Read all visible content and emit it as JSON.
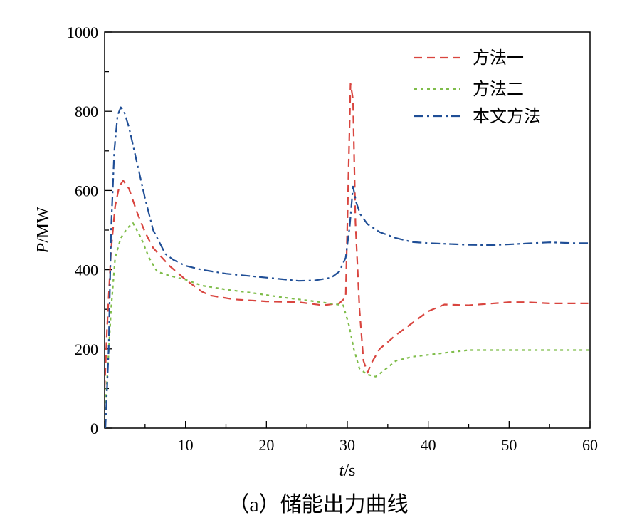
{
  "chart_data": {
    "type": "line",
    "caption": "（a）储能出力曲线",
    "xlabel": {
      "italic": "t",
      "unit": "/s"
    },
    "ylabel": {
      "italic": "P",
      "unit": "/MW"
    },
    "xlim": [
      0,
      60
    ],
    "ylim": [
      0,
      1000
    ],
    "xticks": [
      10,
      20,
      30,
      40,
      50,
      60
    ],
    "xtick_labels": [
      "10",
      "20",
      "30",
      "40",
      "50",
      "60"
    ],
    "yticks": [
      0,
      200,
      400,
      600,
      800,
      1000
    ],
    "ytick_labels": [
      "0",
      "200",
      "400",
      "600",
      "800",
      "1000"
    ],
    "grid": false,
    "legend_position": "top-right",
    "series": [
      {
        "name": "方法一",
        "color": "#d9453f",
        "dash": "dashed",
        "x": [
          0,
          0.3,
          0.8,
          1.3,
          1.8,
          2.3,
          3.0,
          4.0,
          5.0,
          6.0,
          8.0,
          10.0,
          12.0,
          13.0,
          16.0,
          20.0,
          24.0,
          27.0,
          29.0,
          29.8,
          30.1,
          30.4,
          30.7,
          31.0,
          31.5,
          32.0,
          32.5,
          33.0,
          34.0,
          36.0,
          38.0,
          40.0,
          42.0,
          45.0,
          50.0,
          52.0,
          55.0,
          60.0
        ],
        "y": [
          100,
          250,
          450,
          560,
          610,
          625,
          605,
          545,
          495,
          455,
          410,
          375,
          345,
          335,
          325,
          320,
          318,
          310,
          315,
          330,
          600,
          870,
          830,
          520,
          300,
          170,
          140,
          165,
          200,
          235,
          265,
          295,
          312,
          310,
          318,
          318,
          315,
          315
        ]
      },
      {
        "name": "方法二",
        "color": "#7fbd4a",
        "dash": "dotted",
        "x": [
          0,
          0.3,
          0.8,
          1.3,
          2.0,
          2.8,
          3.5,
          4.5,
          5.5,
          6.5,
          8.0,
          10.0,
          12.0,
          15.0,
          18.0,
          22.0,
          26.0,
          29.5,
          30.2,
          30.8,
          31.5,
          32.5,
          33.5,
          34.5,
          36.0,
          38.0,
          42.0,
          45.0,
          50.0,
          55.0,
          60.0
        ],
        "y": [
          30,
          120,
          300,
          430,
          480,
          505,
          518,
          480,
          430,
          395,
          385,
          375,
          360,
          350,
          342,
          330,
          320,
          310,
          260,
          200,
          150,
          135,
          130,
          145,
          170,
          180,
          190,
          197,
          197,
          197,
          197
        ]
      },
      {
        "name": "本文方法",
        "color": "#1f4e96",
        "dash": "dashdot",
        "x": [
          0.1,
          0.5,
          0.8,
          1.2,
          1.6,
          2.0,
          2.4,
          3.0,
          4.0,
          5.0,
          6.0,
          7.0,
          7.5,
          8.5,
          10.0,
          12.0,
          15.0,
          20.0,
          24.0,
          26.0,
          28.0,
          29.0,
          29.8,
          30.3,
          30.7,
          31.1,
          31.6,
          32.5,
          34.0,
          36.0,
          38.0,
          40.0,
          45.0,
          48.0,
          52.0,
          55.0,
          58.0,
          60.0
        ],
        "y": [
          0,
          200,
          500,
          700,
          790,
          810,
          800,
          760,
          670,
          580,
          500,
          460,
          440,
          425,
          410,
          400,
          390,
          380,
          372,
          373,
          380,
          395,
          430,
          510,
          610,
          570,
          540,
          515,
          495,
          480,
          470,
          467,
          463,
          462,
          466,
          469,
          467,
          467
        ]
      }
    ]
  }
}
